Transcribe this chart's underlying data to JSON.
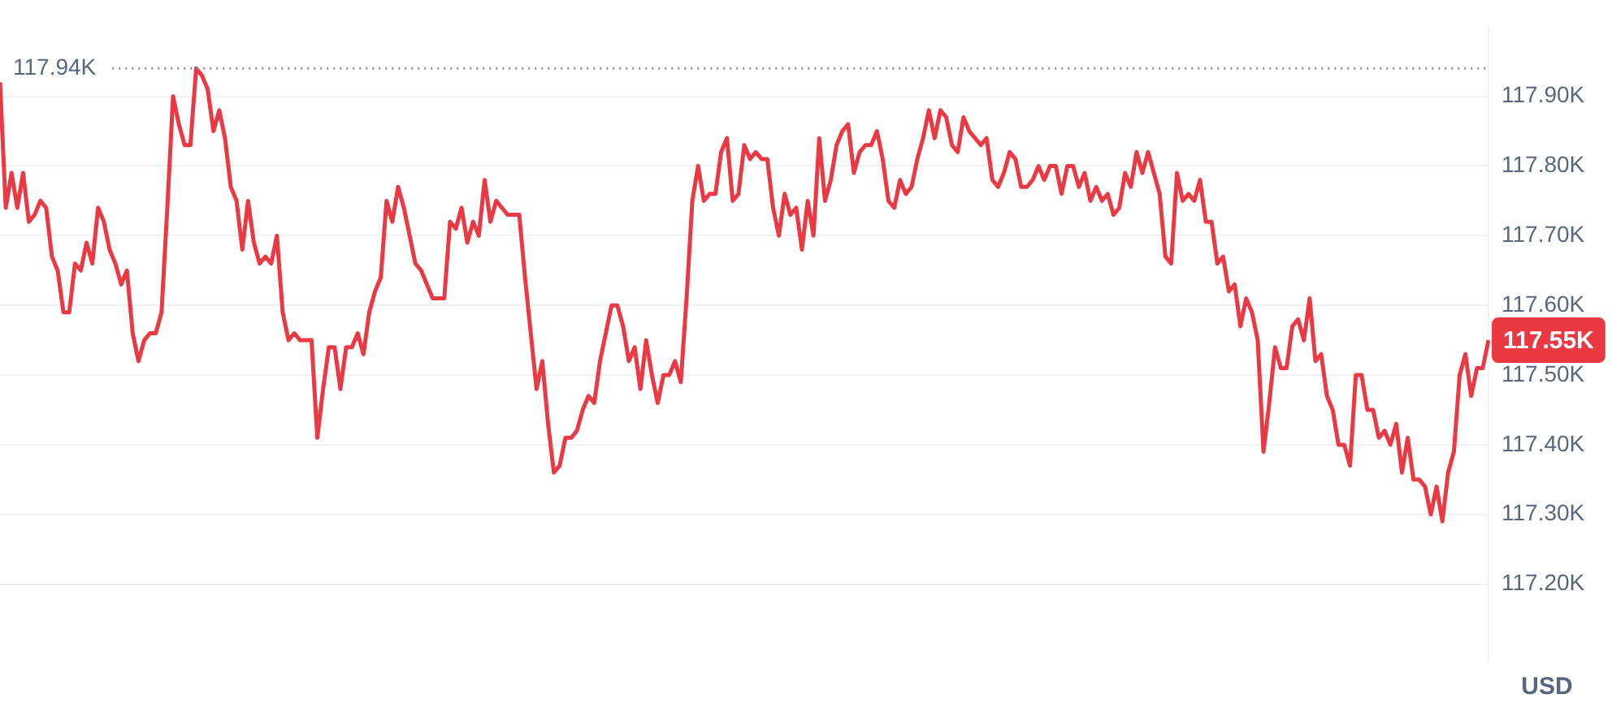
{
  "chart_data": {
    "type": "line",
    "categories": [
      null,
      null,
      null,
      null,
      null,
      null,
      null,
      null,
      null,
      null,
      null,
      null,
      null,
      null,
      null,
      null,
      null,
      null,
      null,
      null,
      null,
      null,
      null,
      null,
      null,
      null,
      null,
      null,
      null,
      null,
      null,
      null,
      null,
      null,
      null,
      null,
      null,
      null,
      null,
      null,
      null,
      null,
      null,
      null,
      null,
      null,
      null,
      null,
      null,
      null,
      null,
      null,
      null,
      null,
      null,
      null,
      null,
      null,
      null,
      null,
      null,
      null,
      null,
      null,
      null,
      null,
      null,
      null,
      null,
      null,
      null,
      null,
      null,
      null,
      null,
      null,
      null,
      null,
      null,
      null,
      null,
      null,
      null,
      null,
      null,
      null,
      null,
      null,
      null,
      null,
      null,
      null,
      null,
      null,
      null,
      null,
      null,
      null,
      null,
      null,
      null,
      null,
      null,
      null,
      null,
      null,
      null,
      null,
      null,
      null,
      null,
      null,
      null,
      null,
      null,
      null,
      null,
      null,
      null,
      null,
      null,
      null,
      null,
      null,
      null,
      null,
      null,
      null,
      null,
      null,
      null,
      null,
      null,
      null,
      null,
      null,
      null,
      null,
      null,
      null,
      null,
      null,
      null,
      null,
      null,
      null,
      null,
      null,
      null,
      null,
      null,
      null,
      null,
      null,
      null,
      null,
      null,
      null,
      null,
      null,
      null,
      null,
      null,
      null,
      null,
      null,
      null,
      null,
      null,
      null,
      null,
      null,
      null,
      null,
      null,
      null,
      null,
      null,
      null,
      null,
      null,
      null,
      null,
      null,
      null,
      null,
      null,
      null,
      null,
      null,
      null,
      null,
      null,
      null,
      null,
      null,
      null,
      null,
      null,
      null,
      null,
      null,
      null,
      null,
      null,
      null,
      null,
      null,
      null,
      null,
      null,
      null,
      null,
      null,
      null,
      null,
      null,
      null,
      null,
      null,
      null,
      null,
      null,
      null,
      null,
      null,
      null,
      null,
      null,
      null,
      null,
      null,
      null,
      null,
      null,
      null,
      null,
      null,
      null,
      null,
      null,
      null,
      null,
      null,
      null,
      null,
      null,
      null,
      null,
      null,
      null,
      null,
      null,
      null,
      null,
      null,
      null,
      null,
      null
    ],
    "series": [
      {
        "color": "#ea3943",
        "values": [
          117920,
          117740,
          117790,
          117740,
          117790,
          117720,
          117730,
          117750,
          117740,
          117670,
          117650,
          117590,
          117590,
          117660,
          117650,
          117690,
          117660,
          117740,
          117720,
          117680,
          117660,
          117630,
          117650,
          117560,
          117520,
          117550,
          117560,
          117560,
          117590,
          117740,
          117900,
          117860,
          117830,
          117830,
          117940,
          117930,
          117910,
          117850,
          117880,
          117840,
          117770,
          117750,
          117680,
          117750,
          117690,
          117660,
          117670,
          117660,
          117700,
          117590,
          117550,
          117560,
          117550,
          117550,
          117550,
          117410,
          117480,
          117540,
          117540,
          117480,
          117540,
          117540,
          117560,
          117530,
          117590,
          117620,
          117640,
          117750,
          117720,
          117770,
          117740,
          117700,
          117660,
          117650,
          117630,
          117610,
          117610,
          117610,
          117720,
          117710,
          117740,
          117690,
          117720,
          117700,
          117780,
          117720,
          117750,
          117740,
          117730,
          117730,
          117730,
          117640,
          117560,
          117480,
          117520,
          117430,
          117360,
          117370,
          117410,
          117410,
          117420,
          117450,
          117470,
          117460,
          117520,
          117560,
          117600,
          117600,
          117570,
          117520,
          117540,
          117480,
          117550,
          117500,
          117460,
          117500,
          117500,
          117520,
          117490,
          117610,
          117750,
          117800,
          117750,
          117760,
          117760,
          117820,
          117840,
          117750,
          117760,
          117830,
          117810,
          117820,
          117810,
          117810,
          117740,
          117700,
          117760,
          117730,
          117740,
          117680,
          117750,
          117700,
          117840,
          117750,
          117780,
          117830,
          117850,
          117860,
          117790,
          117820,
          117830,
          117830,
          117850,
          117810,
          117750,
          117740,
          117780,
          117760,
          117770,
          117810,
          117840,
          117880,
          117840,
          117880,
          117870,
          117830,
          117820,
          117870,
          117850,
          117840,
          117830,
          117840,
          117780,
          117770,
          117790,
          117820,
          117810,
          117770,
          117770,
          117780,
          117800,
          117780,
          117800,
          117800,
          117760,
          117800,
          117800,
          117770,
          117790,
          117750,
          117770,
          117750,
          117760,
          117730,
          117740,
          117790,
          117770,
          117820,
          117790,
          117820,
          117790,
          117760,
          117670,
          117660,
          117790,
          117750,
          117760,
          117750,
          117780,
          117720,
          117720,
          117660,
          117670,
          117620,
          117630,
          117570,
          117610,
          117590,
          117550,
          117390,
          117460,
          117540,
          117510,
          117510,
          117570,
          117580,
          117550,
          117610,
          117520,
          117530,
          117470,
          117450,
          117400,
          117400,
          117370,
          117500,
          117500,
          117450,
          117450,
          117410,
          117420,
          117400,
          117430,
          117360,
          117410,
          117350,
          117350,
          117340,
          117300,
          117340,
          117290,
          117360,
          117390,
          117500,
          117530,
          117470,
          117510,
          117510,
          117550
        ]
      }
    ],
    "ylim": [
      117090,
      118000
    ],
    "yticks": [
      {
        "value": 117200,
        "label": "117.20K"
      },
      {
        "value": 117300,
        "label": "117.30K"
      },
      {
        "value": 117400,
        "label": "117.40K"
      },
      {
        "value": 117500,
        "label": "117.50K"
      },
      {
        "value": 117600,
        "label": "117.60K"
      },
      {
        "value": 117700,
        "label": "117.70K"
      },
      {
        "value": 117800,
        "label": "117.80K"
      },
      {
        "value": 117900,
        "label": "117.90K"
      }
    ],
    "ylabel": "USD",
    "grid": "y",
    "legend": false,
    "marker": "none",
    "line_style": "solid",
    "ref_lines": [
      {
        "axis": "y",
        "value": 117940,
        "label": "117.94K",
        "color": "#8a919e",
        "line_style": "dotted"
      }
    ],
    "annotations": [
      "117.55K"
    ]
  }
}
